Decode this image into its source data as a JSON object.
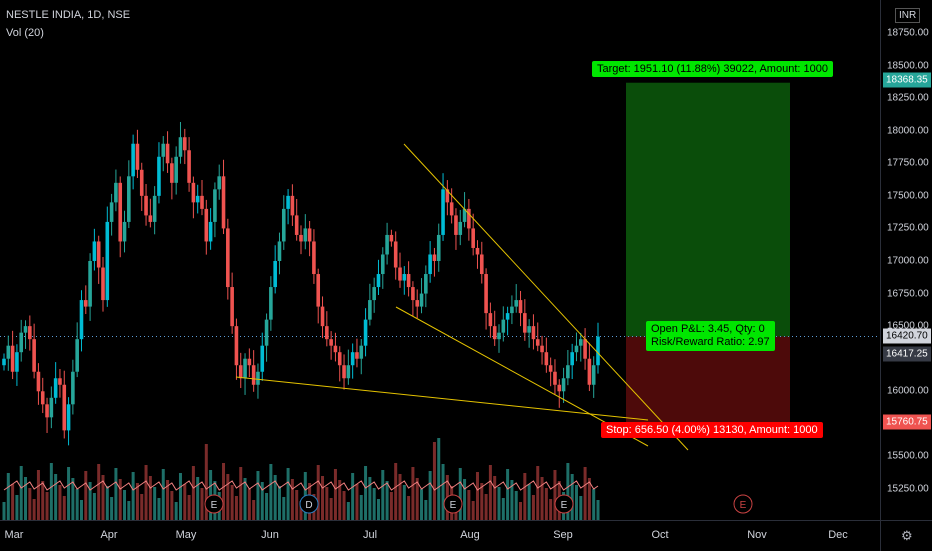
{
  "header": {
    "symbol_line": "NESTLE INDIA, 1D, NSE",
    "volume_line": "Vol (20)",
    "currency": "INR"
  },
  "price_axis": {
    "ticks": [
      "18750.00",
      "18500.00",
      "18250.00",
      "18000.00",
      "17750.00",
      "17500.00",
      "17250.00",
      "17000.00",
      "16750.00",
      "16500.00",
      "16250.00",
      "16000.00",
      "15750.00",
      "15500.00",
      "15250.00"
    ],
    "target_label": "18368.35",
    "current_label": "16420.70",
    "last_label": "16417.25",
    "stop_label": "15760.75"
  },
  "time_axis": {
    "labels": [
      "Mar",
      "Apr",
      "May",
      "Jun",
      "Jul",
      "Aug",
      "Sep",
      "Oct",
      "Nov",
      "Dec"
    ]
  },
  "position": {
    "target_text": "Target: 1951.10 (11.88%) 39022, Amount: 1000",
    "open_pnl_text": "Open P&L: 3.45, Qty: 0",
    "rr_text": "Risk/Reward Ratio: 2.97",
    "stop_text": "Stop: 656.50 (4.00%) 13130, Amount: 1000"
  },
  "events": [
    "E",
    "D",
    "E",
    "E",
    "E",
    "E"
  ],
  "colors": {
    "up": "#26a69a",
    "up_bright": "#00bcd4",
    "down": "#ef5350",
    "target_zone": "#0a4d0a",
    "stop_zone": "#4d0a0a",
    "target_label": "#00e600",
    "stop_label": "#ff0000",
    "trendline": "#e5c300",
    "ma_line": "#f08080"
  },
  "chart_data": {
    "type": "candlestick",
    "symbol": "NESTLE INDIA",
    "interval": "1D",
    "exchange": "NSE",
    "ylim": [
      15150,
      18900
    ],
    "position_entry": 16420.7,
    "position_target": 18368.35,
    "position_stop": 15760.75,
    "closes": [
      16250,
      16350,
      16150,
      16300,
      16450,
      16500,
      16400,
      16150,
      16000,
      15900,
      15800,
      15950,
      16100,
      16050,
      15700,
      15900,
      16150,
      16400,
      16700,
      16650,
      17000,
      17150,
      16950,
      16700,
      17300,
      17450,
      17600,
      17150,
      17300,
      17650,
      17900,
      17700,
      17500,
      17350,
      17300,
      17500,
      17800,
      17900,
      17750,
      17600,
      17800,
      17950,
      17850,
      17600,
      17450,
      17500,
      17400,
      17150,
      17300,
      17550,
      17650,
      17250,
      16800,
      16500,
      16200,
      16100,
      16250,
      16200,
      16050,
      16150,
      16350,
      16550,
      16800,
      17000,
      17150,
      17400,
      17500,
      17350,
      17200,
      17150,
      17250,
      17150,
      16900,
      16650,
      16500,
      16400,
      16350,
      16300,
      16200,
      16100,
      16200,
      16300,
      16250,
      16350,
      16550,
      16700,
      16800,
      16900,
      17050,
      17200,
      17150,
      16950,
      16850,
      16900,
      16800,
      16700,
      16650,
      16750,
      16900,
      17050,
      17000,
      17200,
      17550,
      17450,
      17350,
      17200,
      17300,
      17400,
      17250,
      17100,
      17050,
      16900,
      16600,
      16500,
      16400,
      16450,
      16550,
      16600,
      16650,
      16700,
      16600,
      16450,
      16500,
      16400,
      16350,
      16300,
      16200,
      16150,
      16050,
      16000,
      16100,
      16200,
      16300,
      16350,
      16400,
      16250,
      16050,
      16200,
      16420
    ]
  }
}
